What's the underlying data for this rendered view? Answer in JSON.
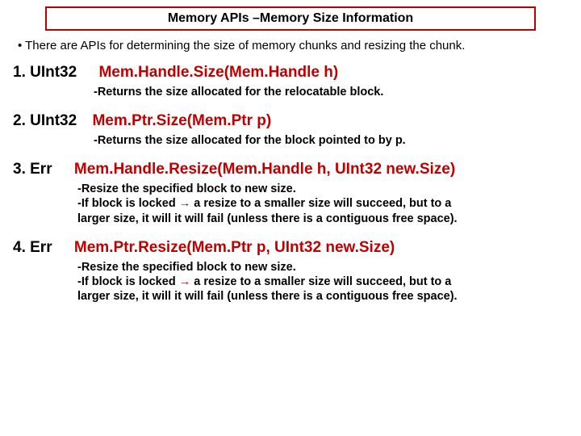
{
  "colors": {
    "accent": "#c00000",
    "text": "#000000",
    "background": "#ffffff"
  },
  "title": "Memory APIs –Memory Size Information",
  "intro_bullet": "• There are APIs for determining the size of memory chunks and resizing the chunk.",
  "apis": {
    "a1": {
      "ret": "1. UInt32",
      "fn": "Mem.Handle.Size(Mem.Handle h)",
      "desc_lines": [
        "-Returns the size allocated for the relocatable block."
      ]
    },
    "a2": {
      "ret": "2. UInt32",
      "fn": "Mem.Ptr.Size(Mem.Ptr p)",
      "desc_lines": [
        "-Returns the size allocated for the block pointed to by p."
      ]
    },
    "a3": {
      "ret": "3. Err",
      "fn": "Mem.Handle.Resize(Mem.Handle h, UInt32 new.Size)",
      "desc_lines": [
        "-Resize the specified block to new size.",
        "-If block is locked ",
        " a resize to a smaller size will succeed, but to a",
        "larger size, it will it will fail (unless there is a contiguous free space)."
      ]
    },
    "a4": {
      "ret": "4. Err",
      "fn": "Mem.Ptr.Resize(Mem.Ptr p, UInt32 new.Size)",
      "desc_lines": [
        "-Resize the specified block to new size.",
        "-If block is locked ",
        " a resize to a smaller size will succeed, but to a",
        "larger size, it will it will fail (unless there is a contiguous free space)."
      ]
    }
  },
  "arrow_glyph": "→"
}
